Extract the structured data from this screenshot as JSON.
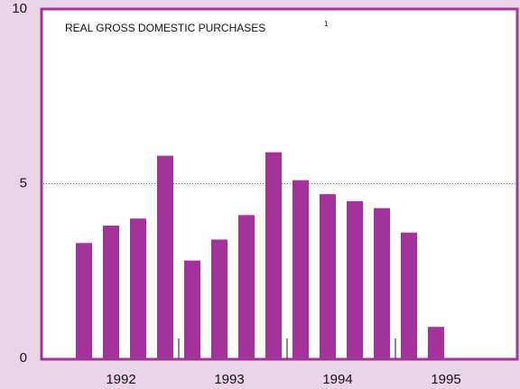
{
  "chart_data": {
    "type": "bar",
    "title": "REAL GROSS DOMESTIC PURCHASES",
    "title_note": "1",
    "categories": [
      null,
      null,
      null,
      null,
      null,
      null,
      null,
      null,
      null,
      null,
      null,
      null,
      null,
      null,
      null,
      null
    ],
    "values": [
      3.3,
      3.8,
      4.0,
      5.8,
      2.8,
      3.4,
      4.1,
      5.9,
      5.1,
      4.7,
      4.5,
      4.3,
      3.6,
      0.9,
      null,
      null
    ],
    "year_labels": [
      "1992",
      "1993",
      "1994",
      "1995"
    ],
    "color": "#a3339a",
    "ylim": [
      0,
      10
    ],
    "yticks": [
      0,
      5,
      10
    ],
    "grid": true
  }
}
